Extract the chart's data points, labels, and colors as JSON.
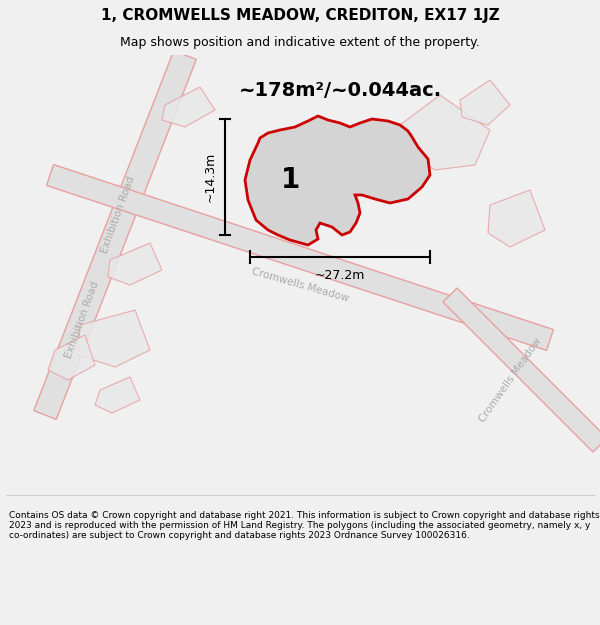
{
  "title": "1, CROMWELLS MEADOW, CREDITON, EX17 1JZ",
  "subtitle": "Map shows position and indicative extent of the property.",
  "area_text": "~178m²/~0.044ac.",
  "width_label": "~27.2m",
  "height_label": "~14.3m",
  "plot_number": "1",
  "footer": "Contains OS data © Crown copyright and database right 2021. This information is subject to Crown copyright and database rights 2023 and is reproduced with the permission of HM Land Registry. The polygons (including the associated geometry, namely x, y co-ordinates) are subject to Crown copyright and database rights 2023 Ordnance Survey 100026316.",
  "bg_color": "#f0f0f0",
  "map_bg": "#ffffff",
  "plot_fill": "#d4d4d4",
  "plot_edge": "#cc0000",
  "road_color": "#e0e0e0",
  "road_edge": "#e8a0a0",
  "road_label_color": "#aaaaaa",
  "other_polygon_edge": "#e8a0a0",
  "other_polygon_fill": "#e8e8e8",
  "title_fontsize": 11,
  "subtitle_fontsize": 9,
  "area_fontsize": 14,
  "footer_fontsize": 6.5
}
